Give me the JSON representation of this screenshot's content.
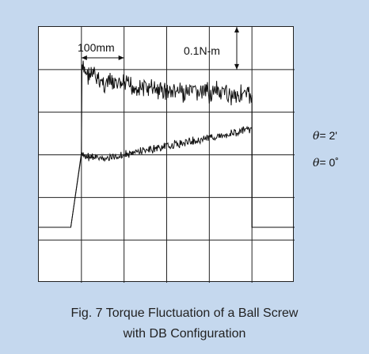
{
  "chart_data": {
    "type": "line",
    "title": "Fig. 7 Torque Fluctuation of a Ball Screw",
    "subtitle": "with DB Configuration",
    "grid": true,
    "grid_divisions": {
      "x": 6,
      "y": 6
    },
    "xlabel": "",
    "ylabel": "",
    "scale_annotations": [
      {
        "text": "100mm",
        "axis": "x",
        "divisions": 1
      },
      {
        "text": "0.1N-m",
        "axis": "y",
        "divisions": 1
      }
    ],
    "series": [
      {
        "name": "θ= 2'",
        "profile_divisions": [
          [
            0,
            4.7
          ],
          [
            0.75,
            4.7
          ],
          [
            1.0,
            3.0
          ],
          [
            1.0,
            1.0
          ],
          [
            1.5,
            1.3
          ],
          [
            3.0,
            1.5
          ],
          [
            5.0,
            1.6
          ],
          [
            5.0,
            4.7
          ],
          [
            6.0,
            4.7
          ]
        ],
        "noise_amplitude_divisions": 0.3
      },
      {
        "name": "θ= 0˚",
        "profile_divisions": [
          [
            0,
            4.7
          ],
          [
            0.75,
            4.7
          ],
          [
            1.0,
            3.0
          ],
          [
            1.5,
            3.1
          ],
          [
            3.0,
            2.8
          ],
          [
            5.0,
            2.4
          ],
          [
            5.0,
            4.7
          ],
          [
            6.0,
            4.7
          ]
        ],
        "noise_amplitude_divisions": 0.12
      }
    ]
  },
  "labels": {
    "scale_x": "100mm",
    "scale_y": "0.1N-m",
    "theta_symbol": "θ",
    "legend_2": "= 2'",
    "legend_0": "= 0˚",
    "caption_line1": "Fig. 7 Torque Fluctuation of a Ball Screw",
    "caption_line2": "with DB Configuration"
  },
  "colors": {
    "background": "#c5d8ee",
    "trace": "#111111",
    "grid": "#222222"
  }
}
